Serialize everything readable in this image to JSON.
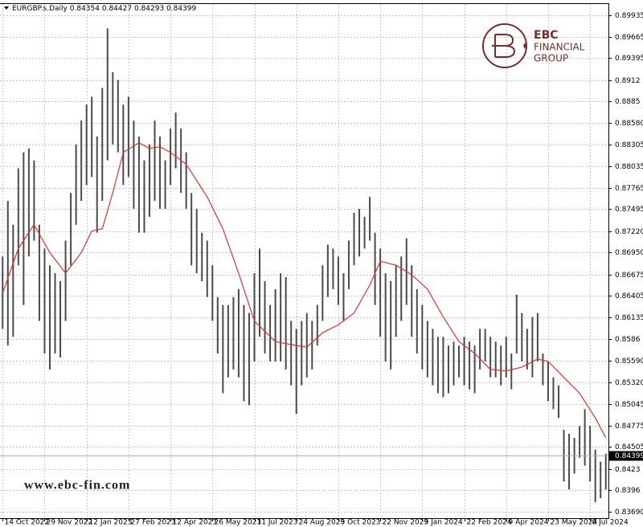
{
  "chart_data": {
    "type": "ohlc",
    "header": {
      "symbol": "EURGBP.s.Daily",
      "open": 0.84354,
      "high": 0.84427,
      "low": 0.84293,
      "close": 0.84399
    },
    "logo": {
      "brand": "EBC",
      "line1": "FINANCIAL",
      "line2": "GROUP"
    },
    "watermark": "www.ebc-fin.com",
    "xlim": [
      -0.5,
      115.5
    ],
    "xticks": [
      {
        "value": 0,
        "label": "14 Oct 2022"
      },
      {
        "value": 8,
        "label": "29 Nov 2022"
      },
      {
        "value": 16,
        "label": "12 Jan 2023"
      },
      {
        "value": 24,
        "label": "27 Feb 2023"
      },
      {
        "value": 32,
        "label": "12 Apr 2023"
      },
      {
        "value": 40,
        "label": "26 May 2023"
      },
      {
        "value": 48,
        "label": "11 Jul 2023"
      },
      {
        "value": 56,
        "label": "24 Aug 2023"
      },
      {
        "value": 64,
        "label": "9 Oct 2023"
      },
      {
        "value": 72,
        "label": "22 Nov 2023"
      },
      {
        "value": 80,
        "label": "9 Jan 2024"
      },
      {
        "value": 88,
        "label": "22 Feb 2024"
      },
      {
        "value": 96,
        "label": "9 Apr 2024"
      },
      {
        "value": 104,
        "label": "23 May 2024"
      },
      {
        "value": 112,
        "label": "8 Jul 2024"
      }
    ],
    "ylim": [
      0.83609,
      0.90076
    ],
    "yticks": [
      0.89935,
      0.89665,
      0.89395,
      0.8912,
      0.8885,
      {
        "value": 0.8858,
        "label": "0.88580"
      },
      0.88305,
      0.88035,
      0.87765,
      0.87495,
      {
        "value": 0.8722,
        "label": "0.87220"
      },
      {
        "value": 0.8695,
        "label": "0.86950"
      },
      0.86675,
      0.86405,
      0.86135,
      0.8586,
      {
        "value": 0.8559,
        "label": "0.85590"
      },
      {
        "value": 0.8532,
        "label": "0.85320"
      },
      0.85045,
      0.84775,
      0.84505,
      0.8423,
      0.8396,
      {
        "value": 0.8369,
        "label": "0.83690"
      }
    ],
    "grid": true,
    "bars": {
      "color": "#4a4a4a",
      "high": [
        0.869,
        0.876,
        0.873,
        0.8801,
        0.8821,
        0.8826,
        0.8811,
        0.873,
        0.87,
        0.8679,
        0.8669,
        0.8659,
        0.871,
        0.877,
        0.8831,
        0.8861,
        0.8881,
        0.8891,
        0.8841,
        0.8902,
        0.8977,
        0.8922,
        0.8912,
        0.8881,
        0.8891,
        0.8861,
        0.8841,
        0.8811,
        0.8831,
        0.8861,
        0.8841,
        0.8811,
        0.8851,
        0.8871,
        0.8851,
        0.8821,
        0.877,
        0.875,
        0.872,
        0.871,
        0.8679,
        0.8639,
        0.8629,
        0.8629,
        0.8639,
        0.8649,
        0.8629,
        0.8619,
        0.8669,
        0.87,
        0.8659,
        0.8629,
        0.8649,
        0.8669,
        0.8664,
        0.8609,
        0.8599,
        0.8609,
        0.8619,
        0.8609,
        0.8629,
        0.8679,
        0.8705,
        0.87,
        0.869,
        0.8669,
        0.871,
        0.8745,
        0.875,
        0.874,
        0.8765,
        0.872,
        0.87,
        0.8669,
        0.8659,
        0.8679,
        0.869,
        0.8713,
        0.8679,
        0.8649,
        0.8629,
        0.8609,
        0.8599,
        0.8589,
        0.8589,
        0.8578,
        0.8583,
        0.8578,
        0.8589,
        0.8583,
        0.8578,
        0.8599,
        0.8599,
        0.8589,
        0.8583,
        0.8578,
        0.8589,
        0.8568,
        0.8642,
        0.8619,
        0.8599,
        0.8614,
        0.8619,
        0.8568,
        0.8558,
        0.8538,
        0.8528,
        0.8472,
        0.8467,
        0.8462,
        0.8477,
        0.8498,
        0.8477,
        0.8447,
        0.8432,
        0.8442
      ],
      "low": [
        0.8599,
        0.8578,
        0.8589,
        0.8679,
        0.8629,
        0.869,
        0.871,
        0.8609,
        0.8568,
        0.8548,
        0.8568,
        0.8563,
        0.8609,
        0.8679,
        0.873,
        0.876,
        0.878,
        0.879,
        0.872,
        0.876,
        0.8811,
        0.8831,
        0.8821,
        0.878,
        0.879,
        0.875,
        0.872,
        0.872,
        0.874,
        0.876,
        0.875,
        0.875,
        0.878,
        0.8801,
        0.877,
        0.875,
        0.8679,
        0.8669,
        0.8659,
        0.8639,
        0.8609,
        0.8568,
        0.8518,
        0.8538,
        0.8548,
        0.8538,
        0.8508,
        0.8503,
        0.8558,
        0.8589,
        0.8568,
        0.8558,
        0.8558,
        0.8558,
        0.8548,
        0.8528,
        0.8492,
        0.8528,
        0.8538,
        0.8548,
        0.8578,
        0.8609,
        0.8639,
        0.8649,
        0.8629,
        0.8609,
        0.8649,
        0.8679,
        0.869,
        0.87,
        0.871,
        0.8629,
        0.8589,
        0.8558,
        0.8548,
        0.8589,
        0.8609,
        0.8629,
        0.8589,
        0.8568,
        0.8548,
        0.8538,
        0.8528,
        0.8518,
        0.8513,
        0.8518,
        0.8528,
        0.8538,
        0.8528,
        0.8523,
        0.8518,
        0.8548,
        0.8558,
        0.8538,
        0.8538,
        0.8528,
        0.8538,
        0.8523,
        0.8568,
        0.8558,
        0.8548,
        0.8538,
        0.8558,
        0.8528,
        0.8508,
        0.8498,
        0.8487,
        0.8407,
        0.8397,
        0.8417,
        0.8437,
        0.8427,
        0.8407,
        0.8381,
        0.8386,
        0.8397
      ]
    },
    "ma": {
      "color": "#e0332b",
      "x": [
        0,
        3,
        6,
        9,
        12,
        15,
        17,
        19,
        21,
        23,
        26,
        28,
        30,
        32,
        35,
        39,
        42,
        45,
        48,
        52,
        56,
        58,
        61,
        64,
        67,
        70,
        72,
        75,
        78,
        81,
        84,
        87,
        90,
        93,
        96,
        99,
        102,
        104,
        107,
        110,
        113,
        115
      ],
      "values": [
        0.8644,
        0.87,
        0.873,
        0.8695,
        0.8669,
        0.8695,
        0.8722,
        0.8725,
        0.877,
        0.8821,
        0.8833,
        0.8826,
        0.8828,
        0.8821,
        0.8806,
        0.8765,
        0.8725,
        0.8669,
        0.8609,
        0.8583,
        0.8578,
        0.8576,
        0.8594,
        0.8604,
        0.8619,
        0.8654,
        0.8684,
        0.8679,
        0.8667,
        0.8649,
        0.8614,
        0.8583,
        0.8568,
        0.8548,
        0.8546,
        0.8551,
        0.8561,
        0.8558,
        0.8538,
        0.8518,
        0.8487,
        0.8462
      ]
    }
  }
}
